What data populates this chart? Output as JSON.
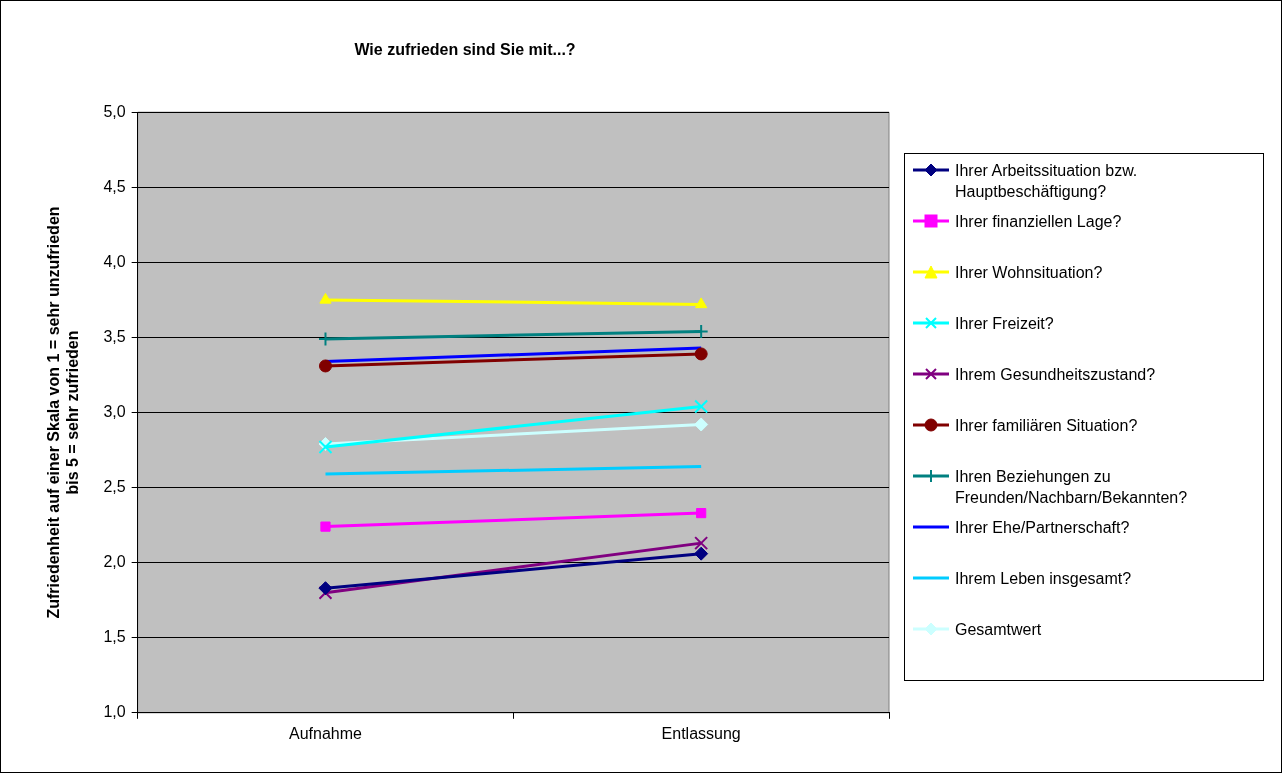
{
  "chart_data": {
    "type": "line",
    "title": "Wie zufrieden sind Sie mit...?",
    "ylabel": "Zufriedenheit auf einer Skala von 1 = sehr unzufrieden\nbis 5 = sehr zufrieden",
    "categories": [
      "Aufnahme",
      "Entlassung"
    ],
    "series": [
      {
        "name": "Ihrer Arbeitssituation bzw. Hauptbeschäftigung?",
        "color": "#000080",
        "marker": "diamond",
        "values": [
          1.83,
          2.06
        ]
      },
      {
        "name": "Ihrer finanziellen Lage?",
        "color": "#ff00ff",
        "marker": "square",
        "values": [
          2.24,
          2.33
        ]
      },
      {
        "name": "Ihrer Wohnsituation?",
        "color": "#ffff00",
        "marker": "triangle",
        "values": [
          3.75,
          3.72
        ]
      },
      {
        "name": "Ihrer Freizeit?",
        "color": "#00ffff",
        "marker": "cross",
        "values": [
          2.77,
          3.04
        ]
      },
      {
        "name": "Ihrem Gesundheitszustand?",
        "color": "#800080",
        "marker": "cross",
        "values": [
          1.8,
          2.13
        ]
      },
      {
        "name": "Ihrer familiären Situation?",
        "color": "#800000",
        "marker": "circle",
        "values": [
          3.31,
          3.39
        ]
      },
      {
        "name": "Ihren Beziehungen zu Freunden/Nachbarn/Bekannten?",
        "color": "#008080",
        "marker": "plus",
        "values": [
          3.49,
          3.54
        ]
      },
      {
        "name": "Ihrer Ehe/Partnerschaft?",
        "color": "#0000ff",
        "marker": "none",
        "values": [
          3.34,
          3.43
        ]
      },
      {
        "name": "Ihrem Leben insgesamt?",
        "color": "#00ccff",
        "marker": "none",
        "values": [
          2.59,
          2.64
        ]
      },
      {
        "name": "Gesamtwert",
        "color": "#ccffff",
        "marker": "diamond",
        "values": [
          2.79,
          2.92
        ]
      }
    ],
    "ylim": [
      1,
      5
    ],
    "yticks": [
      {
        "value": 1,
        "label": "1,0"
      },
      {
        "value": 1.5,
        "label": "1,5"
      },
      {
        "value": 2,
        "label": "2,0"
      },
      {
        "value": 2.5,
        "label": "2,5"
      },
      {
        "value": 3,
        "label": "3,0"
      },
      {
        "value": 3.5,
        "label": "3,5"
      },
      {
        "value": 4,
        "label": "4,0"
      },
      {
        "value": 4.5,
        "label": "4,5"
      },
      {
        "value": 5,
        "label": "5,0"
      }
    ],
    "grid": "y",
    "legend": "right",
    "line_style": "solid"
  }
}
